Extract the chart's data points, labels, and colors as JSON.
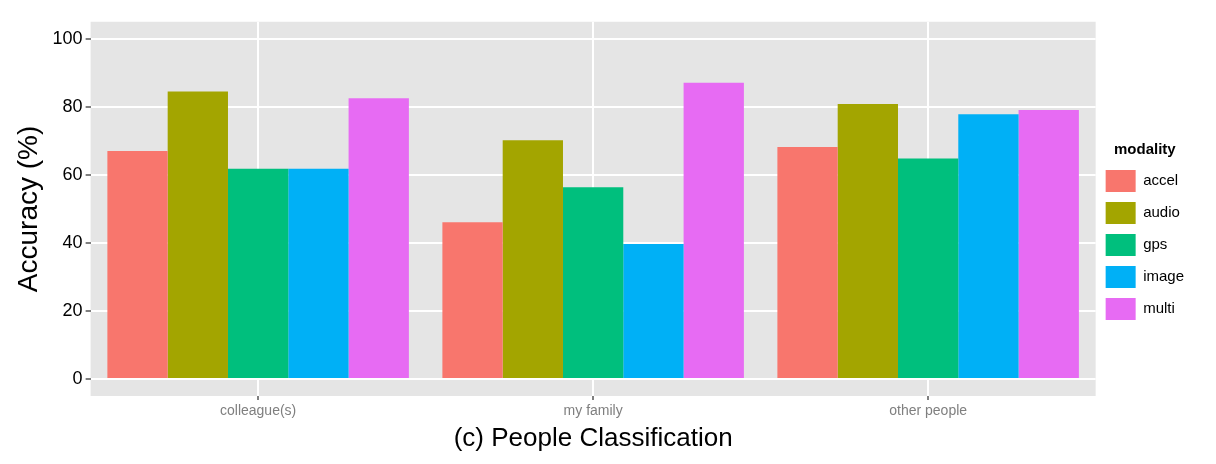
{
  "chart_data": {
    "type": "bar",
    "xlabel": "(c) People Classification",
    "ylabel": "Accuracy (%)",
    "legend_title": "modality",
    "categories": [
      "colleague(s)",
      "my family",
      "other people"
    ],
    "series": [
      {
        "name": "accel",
        "color": "#f8766d",
        "values": [
          67.0,
          46.1,
          68.2
        ]
      },
      {
        "name": "audio",
        "color": "#a3a500",
        "values": [
          84.5,
          70.2,
          80.8
        ]
      },
      {
        "name": "gps",
        "color": "#00bf7d",
        "values": [
          61.8,
          56.4,
          64.8
        ]
      },
      {
        "name": "image",
        "color": "#00b0f6",
        "values": [
          61.8,
          39.7,
          77.8
        ]
      },
      {
        "name": "multi",
        "color": "#e76bf3",
        "values": [
          82.5,
          87.1,
          79.1
        ]
      }
    ],
    "ylim": [
      -5,
      105
    ],
    "yticks": [
      0,
      20,
      40,
      60,
      80,
      100
    ],
    "grid": true,
    "legend": "right"
  }
}
